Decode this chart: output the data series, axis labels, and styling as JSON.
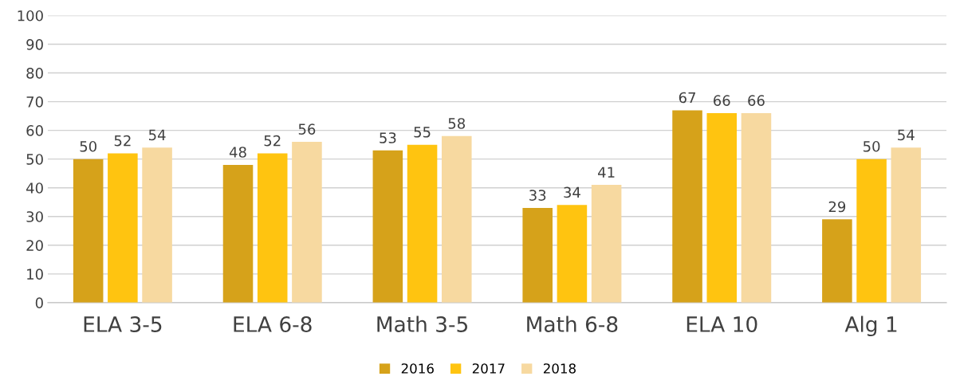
{
  "chart_data": {
    "type": "bar",
    "categories": [
      "ELA 3-5",
      "ELA 6-8",
      "Math 3-5",
      "Math 6-8",
      "ELA 10",
      "Alg 1"
    ],
    "series": [
      {
        "name": "2016",
        "color": "#d6a21a",
        "values": [
          50,
          48,
          53,
          33,
          67,
          29
        ]
      },
      {
        "name": "2017",
        "color": "#ffc410",
        "values": [
          52,
          52,
          55,
          34,
          66,
          50
        ]
      },
      {
        "name": "2018",
        "color": "#f7d9a0",
        "values": [
          54,
          56,
          58,
          41,
          66,
          54
        ]
      }
    ],
    "ylim": [
      0,
      100
    ],
    "yticks": [
      0,
      10,
      20,
      30,
      40,
      50,
      60,
      70,
      80,
      90,
      100
    ],
    "grid": "y",
    "legend": "bottom",
    "data_labels": true
  }
}
